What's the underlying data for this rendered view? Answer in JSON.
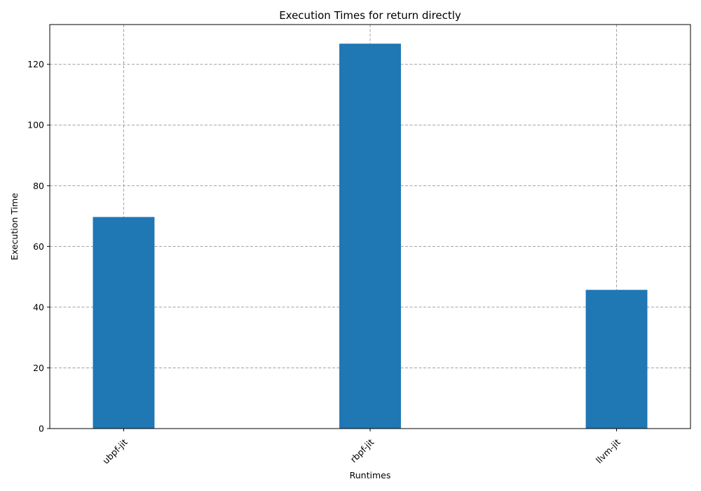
{
  "chart_data": {
    "type": "bar",
    "title": "Execution Times for return directly",
    "xlabel": "Runtimes",
    "ylabel": "Execution Time",
    "categories": [
      "ubpf-jit",
      "rbpf-jit",
      "llvm-jit"
    ],
    "values": [
      69.7,
      126.8,
      45.7
    ],
    "ylim": [
      0,
      133.1
    ],
    "yticks": [
      0,
      20,
      40,
      60,
      80,
      100,
      120
    ],
    "grid": true,
    "legend": "none",
    "bar_color": "#1f77b4",
    "grid_color": "#a0a0a0"
  }
}
